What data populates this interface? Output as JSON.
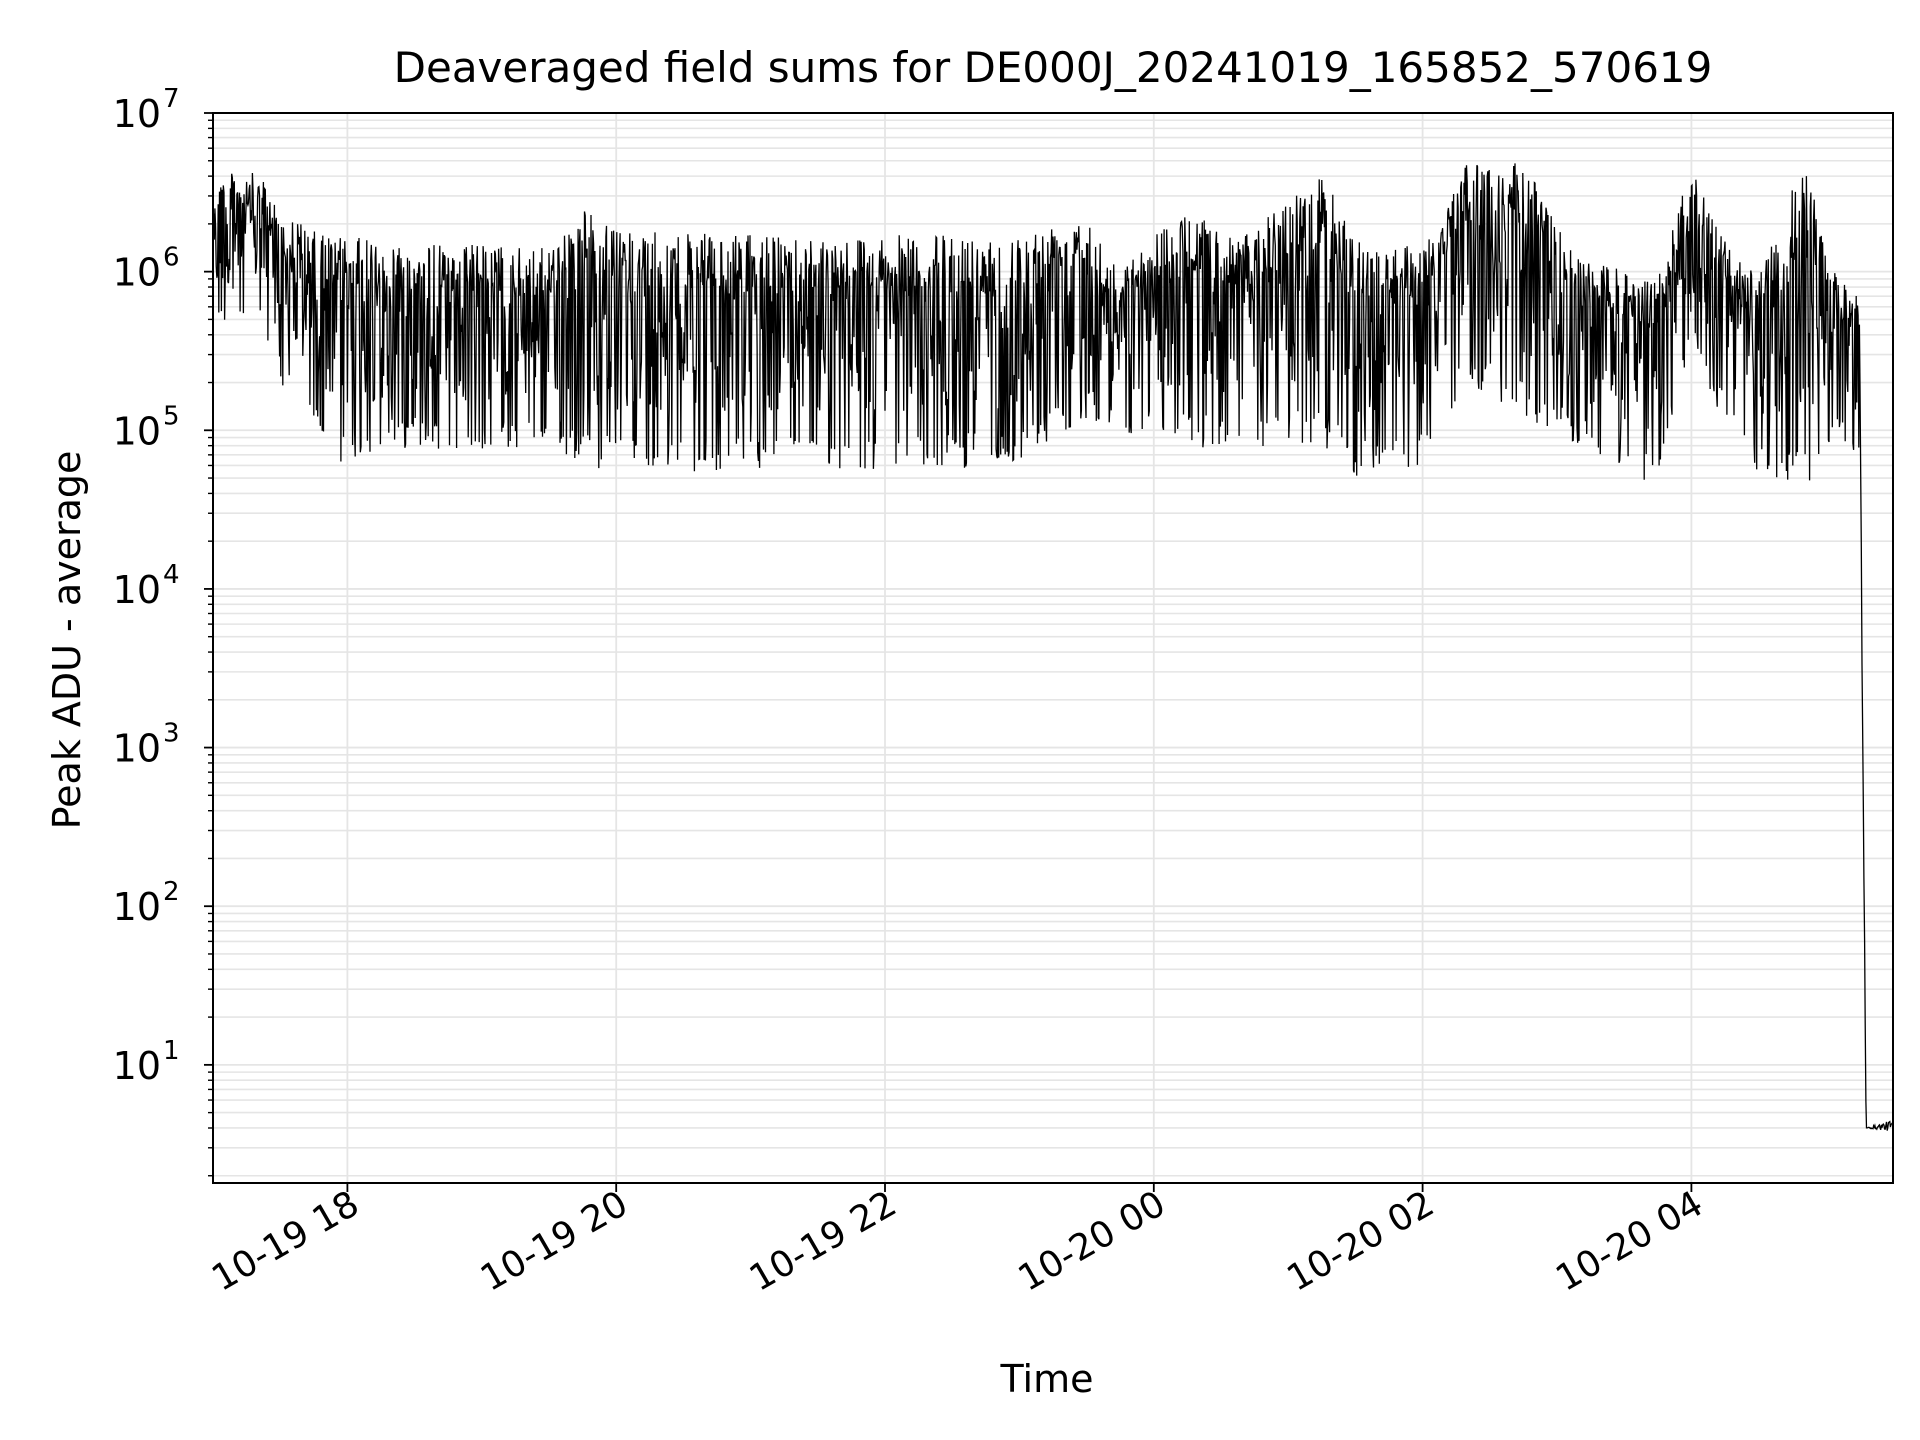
{
  "chart_data": {
    "type": "line",
    "title": "Deaveraged field sums for DE000J_20241019_165852_570619",
    "xlabel": "Time",
    "ylabel": "Peak ADU - average",
    "yscale": "log",
    "ylim": [
      1.8,
      10000000
    ],
    "xlim": [
      "2024-10-19 17:00",
      "2024-10-20 05:30"
    ],
    "grid": true,
    "line_color": "#000000",
    "grid_color": "#e5e5e5",
    "y_ticks": [
      {
        "value": 10,
        "base": "10",
        "exp": "1"
      },
      {
        "value": 100,
        "base": "10",
        "exp": "2"
      },
      {
        "value": 1000,
        "base": "10",
        "exp": "3"
      },
      {
        "value": 10000,
        "base": "10",
        "exp": "4"
      },
      {
        "value": 100000,
        "base": "10",
        "exp": "5"
      },
      {
        "value": 1000000,
        "base": "10",
        "exp": "6"
      },
      {
        "value": 10000000,
        "base": "10",
        "exp": "7"
      }
    ],
    "x_ticks": [
      {
        "value": "2024-10-19 18:00",
        "label": "10-19 18"
      },
      {
        "value": "2024-10-19 20:00",
        "label": "10-19 20"
      },
      {
        "value": "2024-10-19 22:00",
        "label": "10-19 22"
      },
      {
        "value": "2024-10-20 00:00",
        "label": "10-20 00"
      },
      {
        "value": "2024-10-20 02:00",
        "label": "10-20 02"
      },
      {
        "value": "2024-10-20 04:00",
        "label": "10-20 04"
      }
    ],
    "series": [
      {
        "envelope": [
          {
            "x": "2024-10-19 17:00",
            "high": 4200000,
            "low": 400000
          },
          {
            "x": "2024-10-19 17:20",
            "high": 4200000,
            "low": 500000
          },
          {
            "x": "2024-10-19 17:30",
            "high": 2500000,
            "low": 200000
          },
          {
            "x": "2024-10-19 17:45",
            "high": 1800000,
            "low": 100000
          },
          {
            "x": "2024-10-19 17:55",
            "high": 1700000,
            "low": 60000
          },
          {
            "x": "2024-10-19 18:30",
            "high": 1500000,
            "low": 80000
          },
          {
            "x": "2024-10-19 19:00",
            "high": 1500000,
            "low": 70000
          },
          {
            "x": "2024-10-19 19:30",
            "high": 1400000,
            "low": 80000
          },
          {
            "x": "2024-10-19 19:45",
            "high": 2600000,
            "low": 60000
          },
          {
            "x": "2024-10-19 20:00",
            "high": 1800000,
            "low": 55000
          },
          {
            "x": "2024-10-19 21:00",
            "high": 1700000,
            "low": 55000
          },
          {
            "x": "2024-10-19 22:00",
            "high": 1700000,
            "low": 55000
          },
          {
            "x": "2024-10-19 23:00",
            "high": 1700000,
            "low": 60000
          },
          {
            "x": "2024-10-19 23:30",
            "high": 2500000,
            "low": 120000
          },
          {
            "x": "2024-10-19 23:45",
            "high": 1000000,
            "low": 100000
          },
          {
            "x": "2024-10-20 00:10",
            "high": 2500000,
            "low": 80000
          },
          {
            "x": "2024-10-20 00:40",
            "high": 1700000,
            "low": 70000
          },
          {
            "x": "2024-10-20 01:15",
            "high": 4200000,
            "low": 80000
          },
          {
            "x": "2024-10-20 01:30",
            "high": 1600000,
            "low": 50000
          },
          {
            "x": "2024-10-20 02:00",
            "high": 1500000,
            "low": 60000
          },
          {
            "x": "2024-10-20 02:20",
            "high": 4800000,
            "low": 200000
          },
          {
            "x": "2024-10-20 02:45",
            "high": 5000000,
            "low": 120000
          },
          {
            "x": "2024-10-20 03:10",
            "high": 1200000,
            "low": 80000
          },
          {
            "x": "2024-10-20 03:45",
            "high": 900000,
            "low": 42000
          },
          {
            "x": "2024-10-20 04:00",
            "high": 5000000,
            "low": 400000
          },
          {
            "x": "2024-10-20 04:10",
            "high": 2000000,
            "low": 150000
          },
          {
            "x": "2024-10-20 04:30",
            "high": 900000,
            "low": 50000
          },
          {
            "x": "2024-10-20 04:50",
            "high": 5200000,
            "low": 40000
          },
          {
            "x": "2024-10-20 05:05",
            "high": 900000,
            "low": 100000
          },
          {
            "x": "2024-10-20 05:15",
            "high": 700000,
            "low": 60000
          },
          {
            "x": "2024-10-20 05:18",
            "high": 4,
            "low": 4
          },
          {
            "x": "2024-10-20 05:30",
            "high": 4.5,
            "low": 3.8
          }
        ]
      }
    ]
  }
}
